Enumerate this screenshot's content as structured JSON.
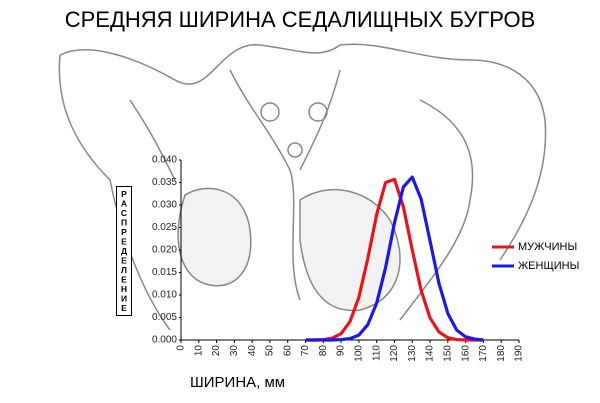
{
  "chart_data": {
    "type": "line",
    "title": "СРЕДНЯЯ ШИРИНА СЕДАЛИЩНЫХ БУГРОВ",
    "x_label": "ШИРИНА, мм",
    "y_label": "РАСПРЕДЕЛЕНИЕ",
    "x": [
      70,
      75,
      80,
      85,
      90,
      95,
      100,
      105,
      110,
      115,
      120,
      125,
      130,
      135,
      140,
      145,
      150,
      155,
      160,
      165,
      170
    ],
    "series": [
      {
        "name": "МУЖЧИНЫ",
        "color": "#e8141c",
        "values": [
          0,
          0,
          0.0001,
          0.0004,
          0.0014,
          0.0041,
          0.0095,
          0.0181,
          0.0279,
          0.035,
          0.0357,
          0.0296,
          0.02,
          0.011,
          0.0049,
          0.0018,
          0.0005,
          0.0001,
          0,
          0,
          0
        ]
      },
      {
        "name": "ЖЕНЩИНЫ",
        "color": "#1a1ae0",
        "values": [
          0,
          0,
          0,
          0,
          0.0001,
          0.0003,
          0.0011,
          0.0034,
          0.0082,
          0.0161,
          0.026,
          0.034,
          0.0362,
          0.0313,
          0.022,
          0.0126,
          0.0059,
          0.0022,
          0.0007,
          0.0002,
          0
        ]
      }
    ],
    "xlim": [
      0,
      190
    ],
    "xticks": [
      0,
      10,
      20,
      30,
      40,
      50,
      60,
      70,
      80,
      90,
      100,
      110,
      120,
      130,
      140,
      150,
      160,
      170,
      180,
      190
    ],
    "ylim": [
      0,
      0.04
    ],
    "yticks": [
      {
        "value": 0,
        "label": "0.000"
      },
      {
        "value": 0.005,
        "label": "0.005"
      },
      {
        "value": 0.01,
        "label": "0.010"
      },
      {
        "value": 0.015,
        "label": "0.015"
      },
      {
        "value": 0.02,
        "label": "0.020"
      },
      {
        "value": 0.025,
        "label": "0.025"
      },
      {
        "value": 0.03,
        "label": "0.030"
      },
      {
        "value": 0.035,
        "label": "0.035"
      },
      {
        "value": 0.04,
        "label": "0.040"
      }
    ],
    "legend": "right"
  }
}
